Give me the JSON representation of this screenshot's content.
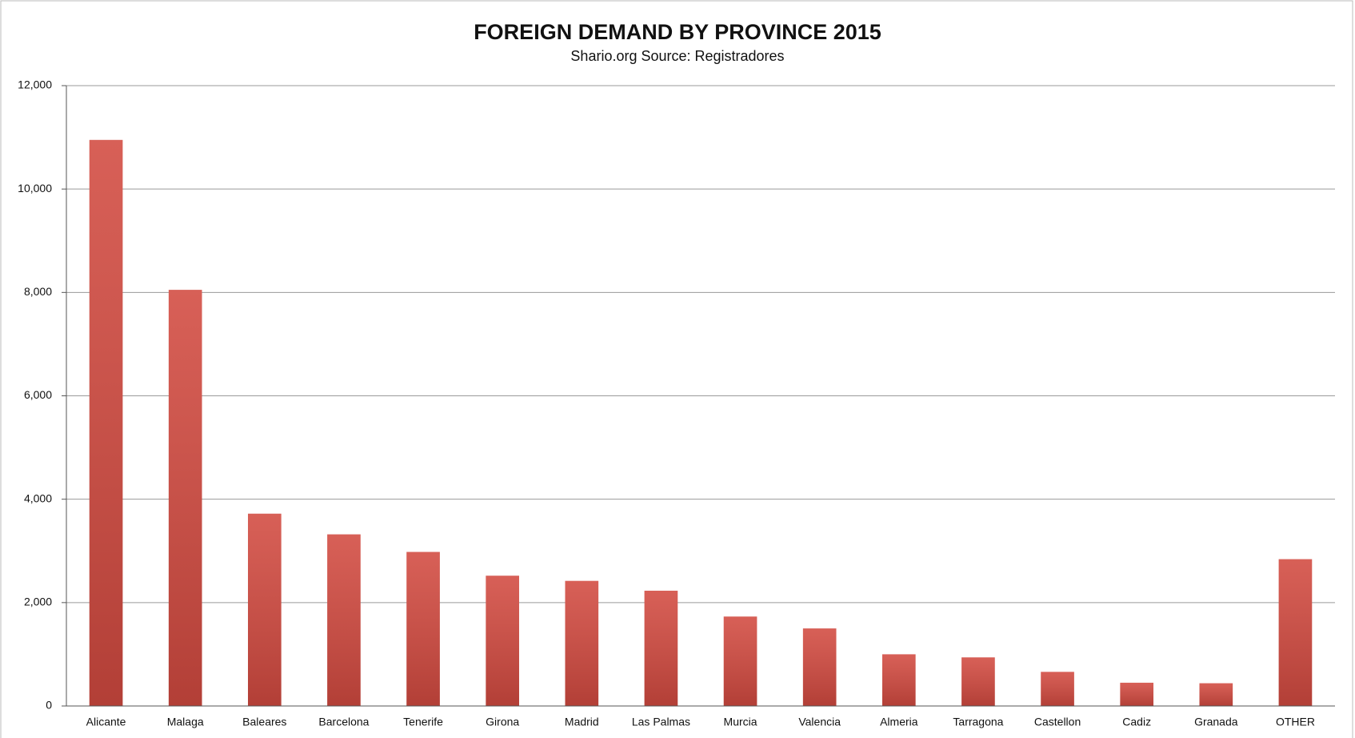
{
  "chart_data": {
    "type": "bar",
    "title": "FOREIGN DEMAND BY PROVINCE 2015",
    "subtitle": "Shario.org Source: Registradores",
    "categories": [
      "Alicante",
      "Malaga",
      "Baleares",
      "Barcelona",
      "Tenerife",
      "Girona",
      "Madrid",
      "Las Palmas",
      "Murcia",
      "Valencia",
      "Almeria",
      "Tarragona",
      "Castellon",
      "Cadiz",
      "Granada",
      "OTHER"
    ],
    "values": [
      10950,
      8050,
      3720,
      3320,
      2980,
      2520,
      2420,
      2230,
      1730,
      1500,
      1000,
      940,
      660,
      450,
      440,
      2840
    ],
    "color": "#d24a40",
    "ylim": [
      0,
      12000
    ],
    "yticks": [
      0,
      {
        "value": 2000,
        "label": "2,000"
      },
      {
        "value": 4000,
        "label": "4,000"
      },
      {
        "value": 6000,
        "label": "6,000"
      },
      {
        "value": 8000,
        "label": "8,000"
      },
      {
        "value": 10000,
        "label": "10,000"
      },
      {
        "value": 12000,
        "label": "12,000"
      }
    ],
    "grid": true
  }
}
